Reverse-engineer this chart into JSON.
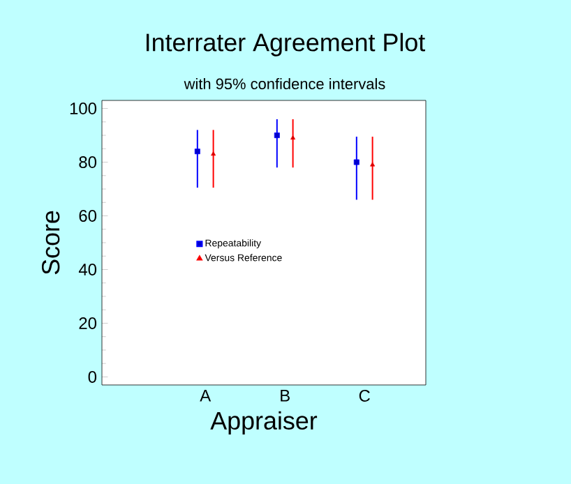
{
  "chart_data": {
    "type": "scatter",
    "title": "Interrater Agreement Plot",
    "subtitle": "with 95% confidence intervals",
    "xlabel": "Appraiser",
    "ylabel": "Score",
    "categories": [
      "A",
      "B",
      "C"
    ],
    "series": [
      {
        "name": "Repeatability",
        "color": "#0000ff",
        "marker": "square",
        "values": [
          84,
          90,
          80
        ],
        "errors": [
          [
            70.5,
            92
          ],
          [
            78,
            96
          ],
          [
            66,
            89.5
          ]
        ]
      },
      {
        "name": "Versus Reference",
        "color": "#ff0000",
        "marker": "triangle",
        "values": [
          83,
          89,
          79
        ],
        "errors": [
          [
            70.5,
            92
          ],
          [
            78,
            96
          ],
          [
            66,
            89.5
          ]
        ]
      }
    ],
    "ylim": [
      -3,
      103
    ],
    "yticks": [
      0,
      20,
      40,
      60,
      80,
      100
    ],
    "legend": "left",
    "grid": false
  }
}
